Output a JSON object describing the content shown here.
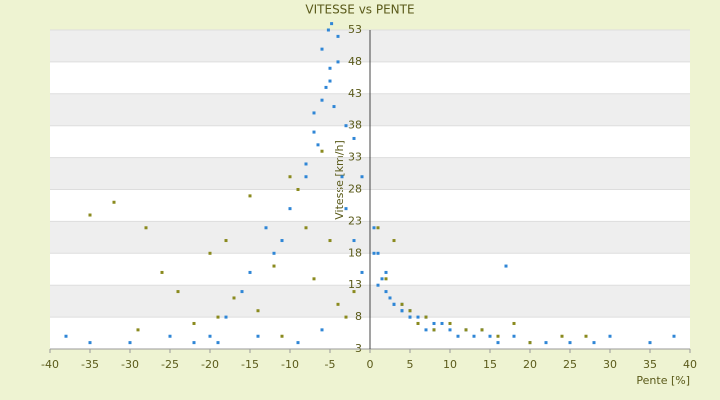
{
  "chart_data": {
    "type": "scatter",
    "title": "VITESSE vs PENTE",
    "x_label": "Pente [%]",
    "y_label": "Vitesse [km/h]",
    "xlim": [
      -40,
      40
    ],
    "xticks": [
      -40,
      -35,
      -30,
      -25,
      -20,
      -15,
      -10,
      -5,
      0,
      5,
      10,
      15,
      20,
      25,
      30,
      35,
      40
    ],
    "ylim": [
      3,
      53
    ],
    "yticks": [
      3,
      8,
      13,
      18,
      23,
      28,
      33,
      38,
      43,
      48,
      53
    ],
    "grid": true,
    "series": [
      {
        "color": "#2f86d6",
        "x": [
          -6,
          -5,
          -4,
          -5.5,
          -4.5,
          -3,
          -7,
          -6.5,
          -3.5,
          -8,
          -9,
          -10,
          -2,
          -1,
          -5,
          -4,
          -6,
          -7,
          -8,
          -11,
          -12,
          -13,
          -15,
          -16,
          -18,
          -20,
          -3,
          -2,
          -1,
          0.5,
          1,
          2,
          3,
          4,
          5,
          6,
          7,
          8,
          9,
          10,
          11,
          12,
          13,
          14,
          15,
          16,
          17,
          18,
          20,
          22,
          25,
          28,
          30,
          35,
          38,
          -38,
          -35,
          -30,
          -25,
          -22,
          -19,
          -14,
          -9,
          -6,
          4,
          5,
          6,
          3,
          2,
          7,
          8,
          5,
          6,
          4,
          1,
          0.5,
          1.5,
          2.5,
          -4.8,
          -5.2
        ],
        "values": [
          50,
          47,
          52,
          44,
          41,
          38,
          40,
          35,
          30,
          32,
          28,
          25,
          36,
          30,
          45,
          48,
          42,
          37,
          30,
          20,
          18,
          22,
          15,
          12,
          8,
          5,
          25,
          20,
          15,
          22,
          18,
          15,
          10,
          9,
          8,
          7,
          8,
          6,
          7,
          6,
          5,
          6,
          5,
          6,
          5,
          4,
          16,
          5,
          4,
          4,
          4,
          4,
          5,
          4,
          5,
          5,
          4,
          4,
          5,
          4,
          4,
          5,
          4,
          6,
          9,
          8,
          7,
          10,
          12,
          6,
          7,
          9,
          8,
          10,
          13,
          18,
          14,
          11,
          54,
          53
        ]
      },
      {
        "color": "#8a8a1e",
        "x": [
          -35,
          -32,
          -28,
          -26,
          -24,
          -20,
          -18,
          -17,
          -15,
          -14,
          -12,
          -10,
          -9,
          -8,
          -7,
          -6,
          -5,
          -4,
          -3,
          -2,
          1,
          2,
          3,
          4,
          5,
          6,
          7,
          8,
          10,
          12,
          14,
          16,
          18,
          20,
          24,
          27,
          -19,
          -22,
          -29,
          -11
        ],
        "values": [
          24,
          26,
          22,
          15,
          12,
          18,
          20,
          11,
          27,
          9,
          16,
          30,
          28,
          22,
          14,
          34,
          20,
          10,
          8,
          12,
          22,
          14,
          20,
          10,
          9,
          7,
          8,
          6,
          7,
          6,
          6,
          5,
          7,
          4,
          5,
          5,
          8,
          7,
          6,
          5
        ]
      }
    ]
  }
}
